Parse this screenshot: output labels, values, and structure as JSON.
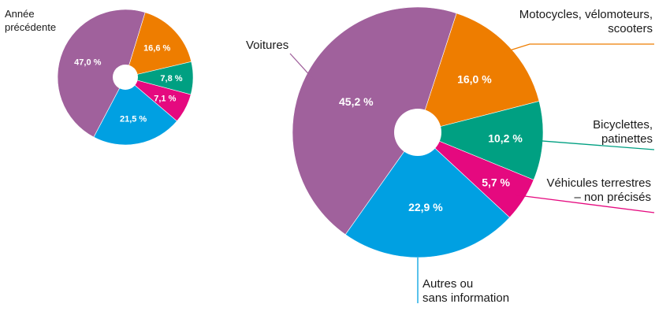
{
  "chart_data": [
    {
      "type": "pie",
      "title": "Année précédente",
      "title_lines": [
        "Année",
        "précédente"
      ],
      "categories": [
        "Motocycles, vélomoteurs, scooters",
        "Bicyclettes, patinettes",
        "Véhicules terrestres – non précisés",
        "Autres ou sans information",
        "Voitures"
      ],
      "values": [
        16.6,
        7.8,
        7.1,
        21.5,
        47.0
      ],
      "value_labels": [
        "16,6 %",
        "7,8 %",
        "7,1 %",
        "21,5 %",
        "47,0 %"
      ],
      "colors": [
        "#EE7D00",
        "#00A082",
        "#E5097F",
        "#00A0E2",
        "#A0619C"
      ],
      "donut": true
    },
    {
      "type": "pie",
      "categories": [
        "Motocycles, vélomoteurs, scooters",
        "Bicyclettes, patinettes",
        "Véhicules terrestres – non précisés",
        "Autres ou sans information",
        "Voitures"
      ],
      "values": [
        16.0,
        10.2,
        5.7,
        22.9,
        45.2
      ],
      "value_labels": [
        "16,0 %",
        "10,2 %",
        "5,7 %",
        "22,9 %",
        "45,2 %"
      ],
      "colors": [
        "#EE7D00",
        "#00A082",
        "#E5097F",
        "#00A0E2",
        "#A0619C"
      ],
      "donut": true,
      "legend": [
        {
          "lines": [
            "Motocycles, vélomoteurs,",
            "scooters"
          ],
          "color": "#EE7D00"
        },
        {
          "lines": [
            "Bicyclettes,",
            "patinettes"
          ],
          "color": "#00A082"
        },
        {
          "lines": [
            "Véhicules terrestres",
            "– non précisés"
          ],
          "color": "#E5097F"
        },
        {
          "lines": [
            "Autres ou",
            "sans information"
          ],
          "color": "#00A0E2"
        },
        {
          "lines": [
            "Voitures"
          ],
          "color": "#A0619C"
        }
      ]
    }
  ]
}
